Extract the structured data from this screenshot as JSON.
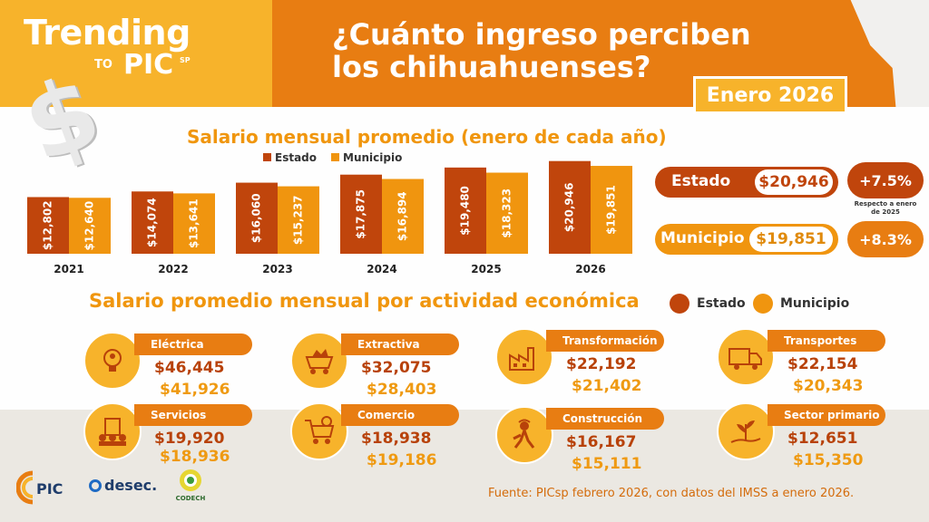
{
  "brand": {
    "title": "Trending",
    "to": "TO",
    "pic": "PIC",
    "sp": "SP"
  },
  "header": {
    "title_line1": "¿Cuánto ingreso perciben",
    "title_line2": "los chihuahuenses?",
    "date": "Enero 2026"
  },
  "colors": {
    "estado": "#c0450c",
    "municipio": "#f0950f",
    "orange": "#e87d12",
    "yellow": "#f7b32b"
  },
  "legend": {
    "estado": "Estado",
    "municipio": "Municipio"
  },
  "chart_data": {
    "type": "bar",
    "title": "Salario mensual promedio (enero de cada año)",
    "categories": [
      "2021",
      "2022",
      "2023",
      "2024",
      "2025",
      "2026"
    ],
    "series": [
      {
        "name": "Estado",
        "values": [
          12802,
          14074,
          16060,
          17875,
          19480,
          20946
        ],
        "labels": [
          "$12,802",
          "$14,074",
          "$16,060",
          "$17,875",
          "$19,480",
          "$20,946"
        ]
      },
      {
        "name": "Municipio",
        "values": [
          12640,
          13641,
          15237,
          16894,
          18323,
          19851
        ],
        "labels": [
          "$12,640",
          "$13,641",
          "$15,237",
          "$16,894",
          "$18,323",
          "$19,851"
        ]
      }
    ],
    "xlabel": "",
    "ylabel": "",
    "ylim": [
      0,
      21500
    ]
  },
  "summary": {
    "estado": {
      "label": "Estado",
      "value": "$20,946",
      "change": "+7.5%"
    },
    "municipio": {
      "label": "Municipio",
      "value": "$19,851",
      "change": "+8.3%"
    },
    "note": "Respecto a enero de 2025"
  },
  "sectors": {
    "title": "Salario promedio mensual por actividad económica",
    "items": [
      {
        "label": "Eléctrica",
        "estado": "$46,445",
        "municipio": "$41,926"
      },
      {
        "label": "Extractiva",
        "estado": "$32,075",
        "municipio": "$28,403"
      },
      {
        "label": "Transformación",
        "estado": "$22,192",
        "municipio": "$21,402"
      },
      {
        "label": "Transportes",
        "estado": "$22,154",
        "municipio": "$20,343"
      },
      {
        "label": "Servicios",
        "estado": "$19,920",
        "municipio": "$18,936"
      },
      {
        "label": "Comercio",
        "estado": "$18,938",
        "municipio": "$19,186"
      },
      {
        "label": "Construcción",
        "estado": "$16,167",
        "municipio": "$15,111"
      },
      {
        "label": "Sector primario",
        "estado": "$12,651",
        "municipio": "$15,350"
      }
    ]
  },
  "footer": {
    "source": "Fuente: PICsp febrero 2026, con datos del IMSS a enero 2026.",
    "logo_desec": "desec.",
    "logo_codech": "CODECH",
    "logo_pic": "PIC"
  }
}
